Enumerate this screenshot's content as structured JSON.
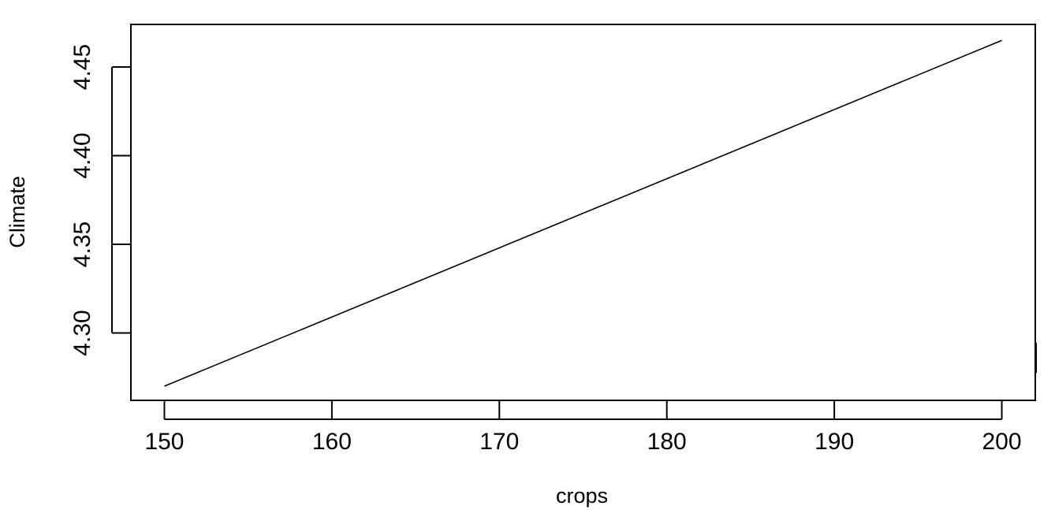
{
  "chart_data": {
    "type": "line",
    "title": "",
    "xlabel": "crops",
    "ylabel": "Climate",
    "xlim": [
      148,
      202
    ],
    "ylim": [
      4.262,
      4.474
    ],
    "x_ticks": [
      150,
      160,
      170,
      180,
      190,
      200
    ],
    "x_tick_labels": [
      "150",
      "160",
      "170",
      "180",
      "190",
      "200"
    ],
    "y_ticks": [
      4.3,
      4.35,
      4.4,
      4.45
    ],
    "y_tick_labels": [
      "4.30",
      "4.35",
      "4.40",
      "4.45"
    ],
    "grid": false,
    "series": [
      {
        "x": [
          150,
          200
        ],
        "y": [
          4.27,
          4.465
        ],
        "color": "#000000"
      }
    ]
  }
}
